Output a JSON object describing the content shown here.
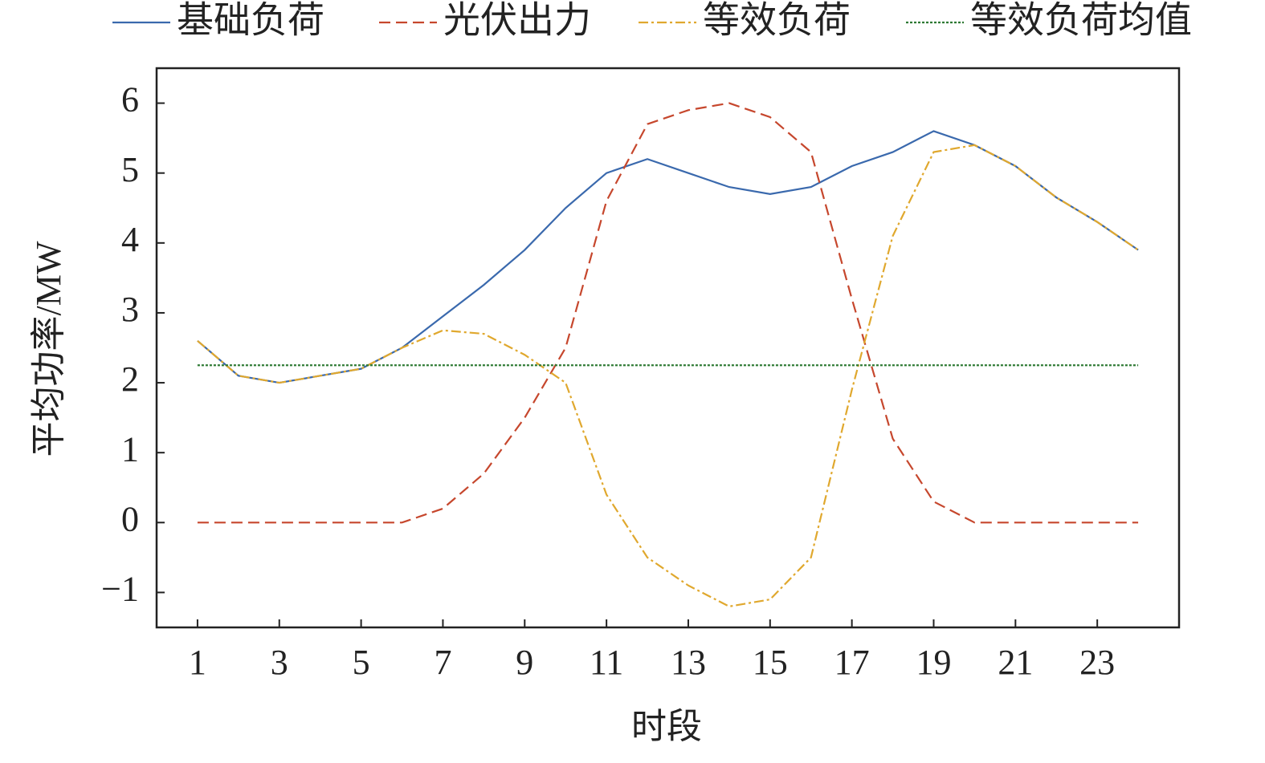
{
  "chart_data": {
    "type": "line",
    "xlabel": "时段",
    "ylabel": "平均功率/MW",
    "x": [
      1,
      2,
      3,
      4,
      5,
      6,
      7,
      8,
      9,
      10,
      11,
      12,
      13,
      14,
      15,
      16,
      17,
      18,
      19,
      20,
      21,
      22,
      23,
      24
    ],
    "xlim": [
      0,
      25
    ],
    "xticks": [
      1,
      3,
      5,
      7,
      9,
      11,
      13,
      15,
      17,
      19,
      21,
      23
    ],
    "ylim": [
      -1.5,
      6.5
    ],
    "yticks": [
      {
        "value": -1,
        "label": "−1"
      },
      0,
      1,
      2,
      3,
      4,
      5,
      6
    ],
    "series": [
      {
        "name": "基础负荷",
        "color": "#3a69ad",
        "dash": "solid",
        "values": [
          2.6,
          2.1,
          2.0,
          2.1,
          2.2,
          2.5,
          2.95,
          3.4,
          3.9,
          4.5,
          5.0,
          5.2,
          5.0,
          4.8,
          4.7,
          4.8,
          5.1,
          5.3,
          5.6,
          5.4,
          5.1,
          4.65,
          4.3,
          3.9
        ]
      },
      {
        "name": "光伏出力",
        "color": "#c6472d",
        "dash": "dashed",
        "values": [
          0,
          0,
          0,
          0,
          0,
          0,
          0.2,
          0.7,
          1.5,
          2.5,
          4.6,
          5.7,
          5.9,
          6.0,
          5.8,
          5.3,
          3.2,
          1.2,
          0.3,
          0,
          0,
          0,
          0,
          0
        ]
      },
      {
        "name": "等效负荷",
        "color": "#e0a82e",
        "dash": "dashdot",
        "values": [
          2.6,
          2.1,
          2.0,
          2.1,
          2.2,
          2.5,
          2.75,
          2.7,
          2.4,
          2.0,
          0.4,
          -0.5,
          -0.9,
          -1.2,
          -1.1,
          -0.5,
          1.9,
          4.1,
          5.3,
          5.4,
          5.1,
          4.65,
          4.3,
          3.9
        ]
      },
      {
        "name": "等效负荷均值",
        "color": "#2e7a34",
        "dash": "dotted",
        "values": [
          2.25,
          2.25,
          2.25,
          2.25,
          2.25,
          2.25,
          2.25,
          2.25,
          2.25,
          2.25,
          2.25,
          2.25,
          2.25,
          2.25,
          2.25,
          2.25,
          2.25,
          2.25,
          2.25,
          2.25,
          2.25,
          2.25,
          2.25,
          2.25
        ]
      }
    ]
  }
}
